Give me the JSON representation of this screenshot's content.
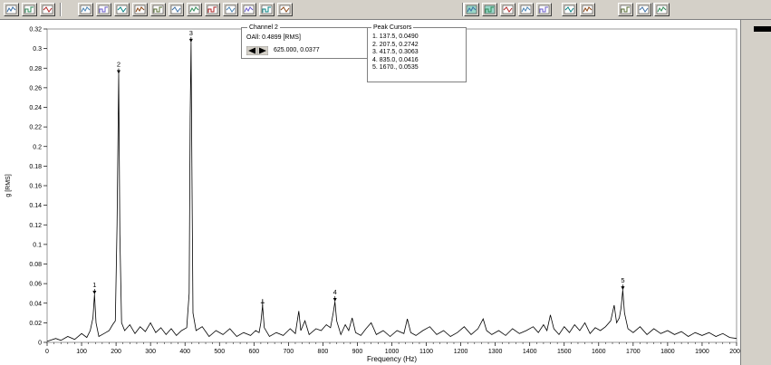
{
  "toolbar": {
    "left_icons": [
      "gauge-icon",
      "envelope-icon",
      "grid-icon",
      "sine-icon",
      "waveform-icon",
      "spectrum-icon",
      "spectrum2-icon",
      "waterfall-icon",
      "lines-icon",
      "peaks-icon",
      "bar-chart-icon",
      "zoom-icon",
      "phase-icon",
      "orbit-icon",
      "cursor-icon"
    ],
    "right_icons": [
      "color-fill-icon",
      "xy-icon",
      "band-icon",
      "overlay-icon",
      "window-icon",
      "spectra-icon",
      "multi-plot-icon",
      "scale-icon",
      "integrate-icon",
      "harmonics-icon"
    ]
  },
  "channel": {
    "title": "Channel 2",
    "oall": "OAll: 0.4899 [RMS]",
    "cursor_value": "625.000, 0.0377"
  },
  "peak_cursors": {
    "title": "Peak Cursors",
    "items": [
      "1. 137.5, 0.0490",
      "2. 207.5, 0.2742",
      "3. 417.5, 0.3063",
      "4. 835.0, 0.0416",
      "5. 1670., 0.0535"
    ]
  },
  "chart_data": {
    "type": "line",
    "xlabel": "Frequency (Hz)",
    "ylabel": "g [RMS]",
    "xlim": [
      0,
      2000
    ],
    "ylim": [
      0,
      0.32
    ],
    "x_ticks": [
      0,
      100,
      200,
      300,
      400,
      500,
      600,
      700,
      800,
      900,
      1000,
      1100,
      1200,
      1300,
      1400,
      1500,
      1600,
      1700,
      1800,
      1900,
      2000
    ],
    "y_ticks": [
      0,
      0.02,
      0.04,
      0.06,
      0.08,
      0.1,
      0.12,
      0.14,
      0.16,
      0.18,
      0.2,
      0.22,
      0.24,
      0.26,
      0.28,
      0.3,
      0.32
    ],
    "y_tick_labels": [
      "0",
      "0.02",
      "0.04",
      "0.06",
      "0.08",
      "0.1",
      "0.12",
      "0.14",
      "0.16",
      "0.18",
      "0.2",
      "0.22",
      "0.24",
      "0.26",
      "0.28",
      "0.3",
      "0.32"
    ],
    "grid": false,
    "line_color": "#000000",
    "peak_markers": [
      {
        "label": "1",
        "x": 137.5,
        "y": 0.049
      },
      {
        "label": "2",
        "x": 207.5,
        "y": 0.2742
      },
      {
        "label": "3",
        "x": 417.5,
        "y": 0.3063
      },
      {
        "label": "4",
        "x": 835.0,
        "y": 0.0416
      },
      {
        "label": "5",
        "x": 1670,
        "y": 0.0535
      }
    ],
    "cursor_marker": {
      "x": 625.0,
      "y": 0.0377
    },
    "series": [
      {
        "points": [
          [
            0,
            0.001
          ],
          [
            25,
            0.004
          ],
          [
            40,
            0.002
          ],
          [
            60,
            0.006
          ],
          [
            80,
            0.003
          ],
          [
            100,
            0.009
          ],
          [
            115,
            0.005
          ],
          [
            125,
            0.012
          ],
          [
            133,
            0.025
          ],
          [
            137.5,
            0.049
          ],
          [
            142,
            0.02
          ],
          [
            150,
            0.006
          ],
          [
            165,
            0.009
          ],
          [
            180,
            0.012
          ],
          [
            190,
            0.018
          ],
          [
            198,
            0.022
          ],
          [
            203,
            0.12
          ],
          [
            207.5,
            0.2742
          ],
          [
            211,
            0.11
          ],
          [
            216,
            0.02
          ],
          [
            225,
            0.012
          ],
          [
            240,
            0.018
          ],
          [
            255,
            0.009
          ],
          [
            270,
            0.016
          ],
          [
            285,
            0.011
          ],
          [
            300,
            0.02
          ],
          [
            315,
            0.01
          ],
          [
            330,
            0.015
          ],
          [
            345,
            0.008
          ],
          [
            360,
            0.014
          ],
          [
            375,
            0.007
          ],
          [
            390,
            0.012
          ],
          [
            405,
            0.015
          ],
          [
            412,
            0.05
          ],
          [
            415,
            0.23
          ],
          [
            417.5,
            0.3063
          ],
          [
            420,
            0.18
          ],
          [
            423,
            0.03
          ],
          [
            432,
            0.012
          ],
          [
            450,
            0.016
          ],
          [
            470,
            0.006
          ],
          [
            490,
            0.012
          ],
          [
            510,
            0.008
          ],
          [
            530,
            0.014
          ],
          [
            550,
            0.006
          ],
          [
            570,
            0.01
          ],
          [
            590,
            0.007
          ],
          [
            605,
            0.012
          ],
          [
            615,
            0.01
          ],
          [
            620,
            0.02
          ],
          [
            625,
            0.0377
          ],
          [
            630,
            0.015
          ],
          [
            645,
            0.006
          ],
          [
            665,
            0.01
          ],
          [
            685,
            0.007
          ],
          [
            705,
            0.014
          ],
          [
            720,
            0.009
          ],
          [
            730,
            0.032
          ],
          [
            736,
            0.012
          ],
          [
            748,
            0.022
          ],
          [
            760,
            0.008
          ],
          [
            780,
            0.014
          ],
          [
            795,
            0.012
          ],
          [
            810,
            0.018
          ],
          [
            822,
            0.015
          ],
          [
            830,
            0.03
          ],
          [
            835,
            0.0416
          ],
          [
            840,
            0.022
          ],
          [
            852,
            0.008
          ],
          [
            865,
            0.018
          ],
          [
            875,
            0.012
          ],
          [
            885,
            0.025
          ],
          [
            895,
            0.01
          ],
          [
            910,
            0.007
          ],
          [
            925,
            0.014
          ],
          [
            940,
            0.02
          ],
          [
            955,
            0.008
          ],
          [
            975,
            0.012
          ],
          [
            995,
            0.006
          ],
          [
            1015,
            0.012
          ],
          [
            1035,
            0.009
          ],
          [
            1045,
            0.024
          ],
          [
            1055,
            0.01
          ],
          [
            1070,
            0.007
          ],
          [
            1090,
            0.012
          ],
          [
            1110,
            0.016
          ],
          [
            1130,
            0.008
          ],
          [
            1150,
            0.012
          ],
          [
            1170,
            0.006
          ],
          [
            1190,
            0.01
          ],
          [
            1210,
            0.016
          ],
          [
            1230,
            0.008
          ],
          [
            1250,
            0.014
          ],
          [
            1265,
            0.024
          ],
          [
            1275,
            0.012
          ],
          [
            1290,
            0.008
          ],
          [
            1310,
            0.012
          ],
          [
            1330,
            0.007
          ],
          [
            1350,
            0.014
          ],
          [
            1370,
            0.009
          ],
          [
            1390,
            0.012
          ],
          [
            1410,
            0.016
          ],
          [
            1425,
            0.01
          ],
          [
            1440,
            0.018
          ],
          [
            1450,
            0.012
          ],
          [
            1460,
            0.028
          ],
          [
            1470,
            0.014
          ],
          [
            1485,
            0.008
          ],
          [
            1500,
            0.016
          ],
          [
            1515,
            0.01
          ],
          [
            1530,
            0.018
          ],
          [
            1545,
            0.012
          ],
          [
            1560,
            0.02
          ],
          [
            1575,
            0.009
          ],
          [
            1590,
            0.015
          ],
          [
            1605,
            0.012
          ],
          [
            1620,
            0.016
          ],
          [
            1635,
            0.022
          ],
          [
            1645,
            0.038
          ],
          [
            1652,
            0.02
          ],
          [
            1660,
            0.025
          ],
          [
            1665,
            0.035
          ],
          [
            1670,
            0.0535
          ],
          [
            1675,
            0.03
          ],
          [
            1685,
            0.014
          ],
          [
            1700,
            0.01
          ],
          [
            1720,
            0.016
          ],
          [
            1740,
            0.008
          ],
          [
            1760,
            0.014
          ],
          [
            1780,
            0.009
          ],
          [
            1800,
            0.012
          ],
          [
            1820,
            0.008
          ],
          [
            1840,
            0.011
          ],
          [
            1860,
            0.006
          ],
          [
            1880,
            0.01
          ],
          [
            1900,
            0.007
          ],
          [
            1920,
            0.01
          ],
          [
            1940,
            0.006
          ],
          [
            1960,
            0.009
          ],
          [
            1980,
            0.005
          ],
          [
            2000,
            0.004
          ]
        ]
      }
    ]
  }
}
